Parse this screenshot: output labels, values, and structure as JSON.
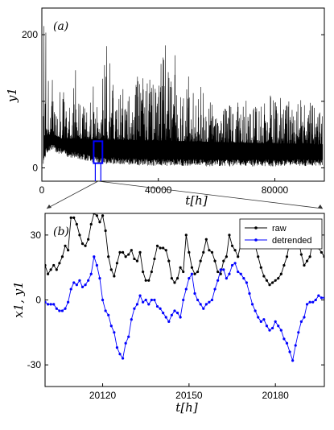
{
  "chart_data": [
    {
      "type": "line",
      "panel_label": "(a)",
      "xlabel": "t[h]",
      "ylabel": "y1",
      "xlim": [
        0,
        97000
      ],
      "ylim": [
        -20,
        240
      ],
      "xticks": [
        0,
        40000,
        80000
      ],
      "xtick_labels": [
        "0",
        "40000",
        "80000"
      ],
      "yticks": [
        0,
        100,
        200
      ],
      "ytick_labels": [
        "0",
        "",
        "200"
      ],
      "series": [
        {
          "color": "#000000",
          "x": [
            500,
            1500,
            2500,
            3500,
            4500,
            5500,
            6500,
            7500,
            8500,
            9500,
            10500,
            11500,
            12500,
            13500,
            14500,
            15500,
            16500,
            17500,
            18500,
            19500,
            20500,
            21500,
            22500,
            23500,
            24500,
            25500,
            26500,
            27500,
            28500,
            29500,
            30500,
            31500,
            32500,
            33500,
            34500,
            35500,
            36500,
            37500,
            38500,
            39500,
            40500,
            41500,
            42500,
            43500,
            44500,
            45500,
            46500,
            47500,
            48500,
            49500,
            50500,
            51500,
            52500,
            53500,
            54500,
            55500,
            56500,
            57500,
            58500,
            59500,
            60500,
            61500,
            62500,
            63500,
            64500,
            65500,
            66500,
            67500,
            68500,
            69500,
            70500,
            71500,
            72500,
            73500,
            74500,
            75500,
            76500,
            77500,
            78500,
            79500,
            80500,
            81500,
            82500,
            83500,
            84500,
            85500,
            86500,
            87500,
            88500,
            89500,
            90500,
            91500,
            92500,
            93500,
            94500,
            95500,
            96500
          ],
          "y_min": [
            5,
            20,
            25,
            26,
            24,
            22,
            20,
            18,
            17,
            15,
            15,
            14,
            13,
            12,
            12,
            10,
            10,
            8,
            8,
            6,
            6,
            5,
            6,
            6,
            6,
            5,
            5,
            4,
            4,
            4,
            5,
            4,
            4,
            3,
            4,
            4,
            3,
            3,
            3,
            4,
            3,
            3,
            3,
            3,
            3,
            3,
            3,
            3,
            3,
            3,
            3,
            3,
            3,
            3,
            3,
            3,
            2,
            2,
            2,
            3,
            3,
            2,
            3,
            3,
            2,
            2,
            3,
            3,
            2,
            2,
            2,
            3,
            2,
            3,
            3,
            2,
            2,
            3,
            2,
            2,
            2,
            3,
            3,
            2,
            3,
            3,
            2,
            3,
            3,
            3,
            2,
            3,
            3,
            2,
            3,
            3,
            3
          ],
          "y_max": [
            230,
            205,
            110,
            160,
            95,
            90,
            140,
            120,
            100,
            110,
            95,
            180,
            115,
            90,
            100,
            120,
            125,
            140,
            100,
            80,
            125,
            240,
            170,
            175,
            130,
            120,
            150,
            135,
            140,
            110,
            125,
            120,
            160,
            150,
            140,
            130,
            145,
            145,
            140,
            150,
            160,
            175,
            195,
            150,
            140,
            200,
            130,
            120,
            125,
            125,
            140,
            120,
            110,
            115,
            125,
            115,
            100,
            105,
            100,
            90,
            100,
            95,
            110,
            110,
            105,
            110,
            120,
            105,
            95,
            100,
            115,
            100,
            100,
            95,
            100,
            110,
            100,
            105,
            110,
            105,
            100,
            110,
            100,
            90,
            100,
            110,
            100,
            95,
            100,
            110,
            100,
            105,
            100,
            110,
            100,
            95,
            90
          ]
        }
      ],
      "highlight_box": {
        "x": [
          17800,
          20800
        ],
        "y": [
          7,
          40
        ],
        "color": "#0000ff"
      }
    },
    {
      "type": "line",
      "panel_label": "(b)",
      "xlabel": "t[h]",
      "ylabel": "x1, y1",
      "xlim": [
        20100,
        20197
      ],
      "ylim": [
        -40,
        40
      ],
      "xticks": [
        20120,
        20150,
        20180
      ],
      "xtick_labels": [
        "20120",
        "20150",
        "20180"
      ],
      "yticks": [
        -30,
        0,
        30
      ],
      "ytick_labels": [
        "-30",
        "0",
        "30"
      ],
      "legend_position": "top-right",
      "series": [
        {
          "name": "raw",
          "color": "#000000",
          "x": [
            20100,
            20101,
            20102,
            20103,
            20104,
            20105,
            20106,
            20107,
            20108,
            20109,
            20110,
            20111,
            20112,
            20113,
            20114,
            20115,
            20116,
            20117,
            20118,
            20119,
            20120,
            20121,
            20122,
            20123,
            20124,
            20125,
            20126,
            20127,
            20128,
            20129,
            20130,
            20131,
            20132,
            20133,
            20134,
            20135,
            20136,
            20137,
            20138,
            20139,
            20140,
            20141,
            20142,
            20143,
            20144,
            20145,
            20146,
            20147,
            20148,
            20149,
            20150,
            20151,
            20152,
            20153,
            20154,
            20155,
            20156,
            20157,
            20158,
            20159,
            20160,
            20161,
            20162,
            20163,
            20164,
            20165,
            20166,
            20167,
            20168,
            20169,
            20170,
            20171,
            20172,
            20173,
            20174,
            20175,
            20176,
            20177,
            20178,
            20179,
            20180,
            20181,
            20182,
            20183,
            20184,
            20185,
            20186,
            20187,
            20188,
            20189,
            20190,
            20191,
            20192,
            20193,
            20194,
            20195,
            20196,
            20197
          ],
          "y": [
            16,
            12,
            14,
            16,
            14,
            17,
            20,
            25,
            23,
            38,
            38,
            35,
            30,
            26,
            25,
            28,
            35,
            40,
            39,
            36,
            39,
            32,
            20,
            14,
            11,
            17,
            22,
            22,
            20,
            21,
            23,
            19,
            18,
            22,
            13,
            9,
            9,
            13,
            19,
            25,
            24,
            24,
            23,
            18,
            10,
            8,
            10,
            15,
            13,
            30,
            22,
            15,
            12,
            13,
            18,
            22,
            28,
            23,
            22,
            18,
            13,
            12,
            18,
            20,
            30,
            25,
            23,
            20,
            26,
            28,
            30,
            33,
            28,
            25,
            20,
            15,
            11,
            9,
            7,
            8,
            9,
            10,
            12,
            16,
            20,
            27,
            30,
            28,
            28,
            21,
            16,
            18,
            20,
            28,
            26,
            24,
            22,
            20
          ]
        },
        {
          "name": "detrended",
          "color": "#0000ff",
          "x": [
            20100,
            20101,
            20102,
            20103,
            20104,
            20105,
            20106,
            20107,
            20108,
            20109,
            20110,
            20111,
            20112,
            20113,
            20114,
            20115,
            20116,
            20117,
            20118,
            20119,
            20120,
            20121,
            20122,
            20123,
            20124,
            20125,
            20126,
            20127,
            20128,
            20129,
            20130,
            20131,
            20132,
            20133,
            20134,
            20135,
            20136,
            20137,
            20138,
            20139,
            20140,
            20141,
            20142,
            20143,
            20144,
            20145,
            20146,
            20147,
            20148,
            20149,
            20150,
            20151,
            20152,
            20153,
            20154,
            20155,
            20156,
            20157,
            20158,
            20159,
            20160,
            20161,
            20162,
            20163,
            20164,
            20165,
            20166,
            20167,
            20168,
            20169,
            20170,
            20171,
            20172,
            20173,
            20174,
            20175,
            20176,
            20177,
            20178,
            20179,
            20180,
            20181,
            20182,
            20183,
            20184,
            20185,
            20186,
            20187,
            20188,
            20189,
            20190,
            20191,
            20192,
            20193,
            20194,
            20195,
            20196,
            20197
          ],
          "y": [
            -1,
            -2,
            -2,
            -2,
            -4,
            -5,
            -5,
            -4,
            -1,
            5,
            8,
            7,
            9,
            6,
            7,
            9,
            12,
            20,
            16,
            10,
            0,
            -5,
            -7,
            -12,
            -15,
            -22,
            -25,
            -27,
            -20,
            -17,
            -9,
            -4,
            -2,
            2,
            -1,
            0,
            -2,
            0,
            0,
            -3,
            -4,
            -6,
            -8,
            -10,
            -7,
            -5,
            -6,
            -8,
            0,
            5,
            10,
            12,
            3,
            0,
            -2,
            -4,
            -2,
            -1,
            0,
            5,
            9,
            14,
            14,
            10,
            12,
            16,
            17,
            13,
            12,
            10,
            8,
            3,
            -2,
            -5,
            -8,
            -10,
            -9,
            -12,
            -14,
            -13,
            -10,
            -12,
            -14,
            -18,
            -20,
            -24,
            -28,
            -21,
            -15,
            -10,
            -8,
            -2,
            -1,
            -1,
            0,
            2,
            1,
            1
          ]
        }
      ]
    }
  ]
}
